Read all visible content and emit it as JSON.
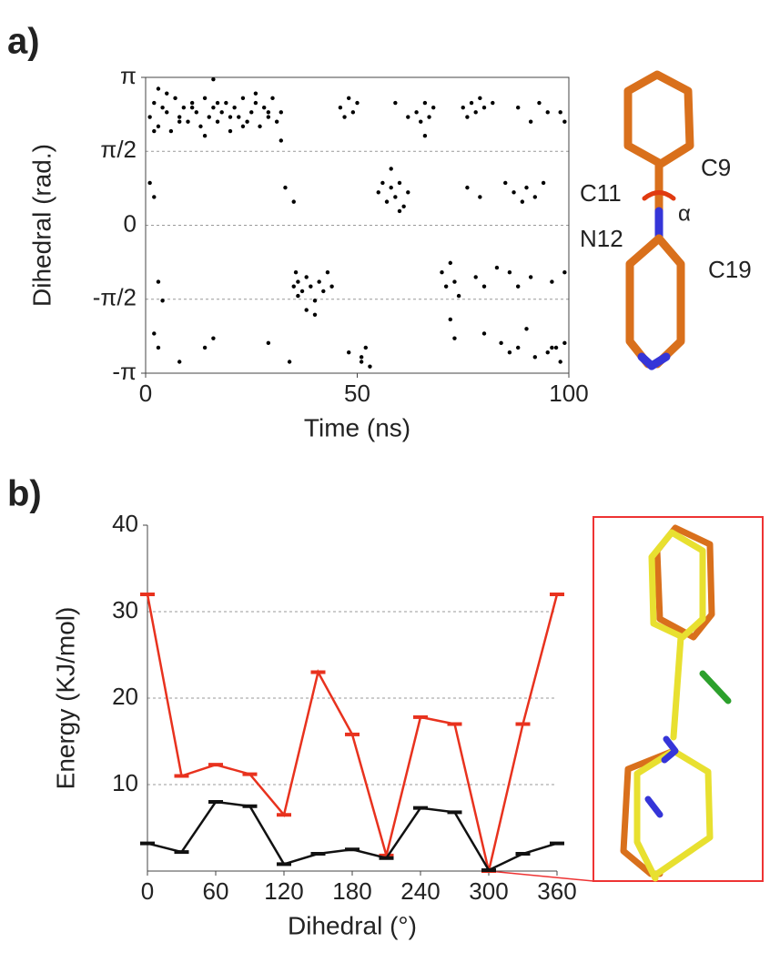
{
  "panel_labels": [
    "a)",
    "b)"
  ],
  "molecule_labels": [
    "C11",
    "C9",
    "α",
    "N12",
    "C19"
  ],
  "chart_data": [
    {
      "type": "scatter",
      "xlabel": "Time (ns)",
      "ylabel": "Dihedral (rad.)",
      "xlim": [
        0,
        100
      ],
      "xticks": [
        0,
        50,
        100
      ],
      "ylim": [
        -3.1416,
        3.1416
      ],
      "yticks": [
        {
          "value": 3.1416,
          "label": "π"
        },
        {
          "value": 1.5708,
          "label": "π/2"
        },
        {
          "value": 0,
          "label": "0"
        },
        {
          "value": -1.5708,
          "label": "-π/2"
        },
        {
          "value": -3.1416,
          "label": "-π"
        }
      ],
      "grid": true,
      "series": [
        {
          "color": "#000000",
          "x": [
            1,
            2,
            3,
            4,
            5,
            6,
            7,
            8,
            9,
            10,
            11,
            12,
            13,
            14,
            15,
            16,
            17,
            18,
            19,
            20,
            21,
            22,
            23,
            24,
            25,
            26,
            27,
            28,
            29,
            30,
            31,
            32,
            2,
            5,
            8,
            11,
            14,
            17,
            20,
            23,
            26,
            29,
            32,
            16,
            3,
            1,
            2,
            3,
            4,
            2,
            3,
            8,
            14,
            16,
            29,
            34,
            35,
            35.5,
            36,
            36,
            37,
            38,
            39,
            40,
            41,
            42,
            43,
            44,
            38,
            40,
            33,
            35,
            46,
            47,
            48,
            49,
            50,
            51,
            52,
            53,
            51,
            48,
            55,
            56,
            57,
            58,
            59,
            60,
            61,
            62,
            58,
            60,
            64,
            65,
            66,
            67,
            68,
            66,
            59,
            62,
            70,
            71,
            72,
            73,
            74,
            72,
            73,
            75,
            76,
            77,
            78,
            79,
            80,
            82,
            78,
            80,
            83,
            76,
            79,
            85,
            80,
            84,
            86,
            88,
            87,
            89,
            90,
            92,
            94,
            88,
            91,
            93,
            95,
            86,
            88,
            91,
            96,
            97,
            98,
            99,
            98,
            99,
            92,
            96,
            99,
            90,
            95
          ],
          "values": [
            2.3,
            2.6,
            2.1,
            2.5,
            2.4,
            2.0,
            2.7,
            2.3,
            2.5,
            2.2,
            2.6,
            2.4,
            2.1,
            2.7,
            2.3,
            2.5,
            2.2,
            2.4,
            2.6,
            2.0,
            2.5,
            2.3,
            2.7,
            2.2,
            2.4,
            2.6,
            2.1,
            2.5,
            2.3,
            2.7,
            2.2,
            2.4,
            2.0,
            2.8,
            2.2,
            2.5,
            1.9,
            2.6,
            2.3,
            2.1,
            2.8,
            2.4,
            1.8,
            3.1,
            2.9,
            0.9,
            0.6,
            -1.2,
            -1.6,
            -2.3,
            -2.6,
            -2.9,
            -2.6,
            -2.4,
            -2.5,
            -2.9,
            -1.3,
            -1.0,
            -1.5,
            -1.2,
            -1.4,
            -1.1,
            -1.3,
            -1.6,
            -1.2,
            -1.4,
            -1.0,
            -1.3,
            -1.8,
            -1.9,
            0.8,
            0.5,
            2.5,
            2.3,
            2.7,
            2.4,
            2.6,
            -2.8,
            -2.6,
            -3.0,
            -2.9,
            -2.7,
            0.7,
            0.9,
            0.5,
            0.8,
            0.6,
            0.9,
            0.4,
            0.7,
            1.2,
            0.3,
            2.4,
            2.2,
            2.6,
            2.3,
            2.5,
            1.9,
            2.6,
            2.3,
            -1.0,
            -1.3,
            -0.8,
            -1.2,
            -1.5,
            -2.0,
            -2.4,
            2.5,
            2.3,
            2.6,
            2.4,
            2.7,
            2.5,
            2.6,
            -1.1,
            -1.3,
            -0.9,
            0.8,
            0.6,
            0.9,
            -2.3,
            -2.5,
            -2.7,
            -2.6,
            0.7,
            0.5,
            0.8,
            0.6,
            0.9,
            2.5,
            2.2,
            2.6,
            2.4,
            -1.0,
            -1.3,
            -1.1,
            -1.2,
            -2.6,
            -2.9,
            -2.5,
            2.4,
            2.2,
            -2.8,
            -2.6,
            -1.0,
            -2.2,
            -2.7
          ]
        }
      ]
    },
    {
      "type": "line",
      "xlabel": "Dihedral (°)",
      "ylabel": "Energy (KJ/mol)",
      "xlim": [
        0,
        360
      ],
      "xticks": [
        0,
        60,
        120,
        180,
        240,
        300,
        360
      ],
      "ylim": [
        0,
        40
      ],
      "yticks": [
        10,
        20,
        30,
        40
      ],
      "grid": true,
      "x": [
        0,
        30,
        60,
        90,
        120,
        150,
        180,
        210,
        240,
        270,
        300,
        330,
        360
      ],
      "series": [
        {
          "color": "#e8321e",
          "values": [
            32,
            11,
            12.3,
            11.2,
            6.5,
            23,
            15.8,
            1.8,
            17.8,
            17,
            0,
            17,
            32
          ]
        },
        {
          "color": "#111111",
          "values": [
            3.2,
            2.2,
            8,
            7.5,
            0.8,
            2,
            2.5,
            1.5,
            7.3,
            6.8,
            0.1,
            2,
            3.2
          ]
        }
      ]
    }
  ]
}
